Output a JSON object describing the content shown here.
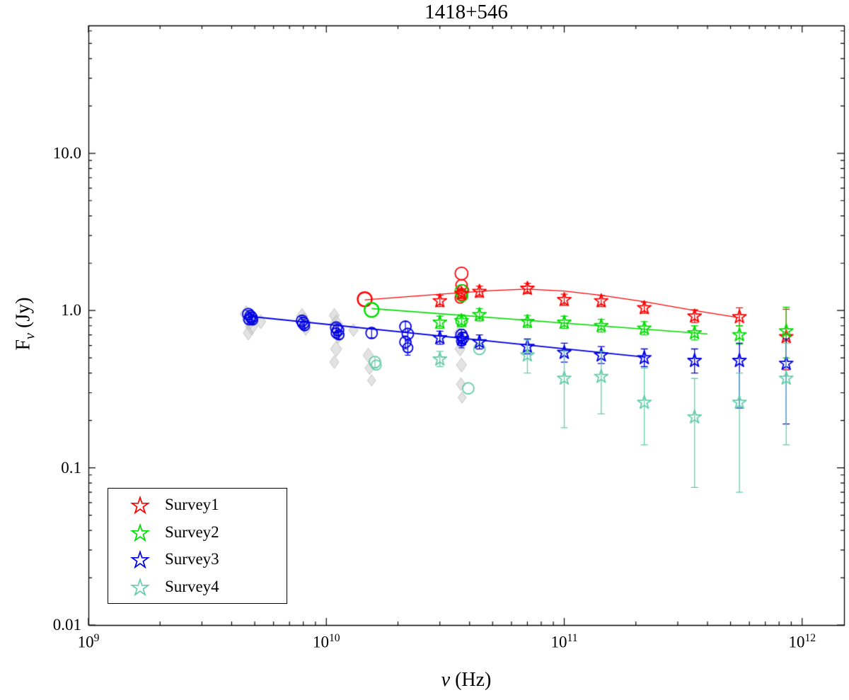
{
  "chart_data": {
    "type": "scatter",
    "title": "1418+546",
    "axes": {
      "xlabel_sym": "ν",
      "xlabel_rest": " (Hz)",
      "ylabel_base": "F",
      "ylabel_sub": "ν",
      "ylabel_rest": " (Jy)"
    },
    "xscale": "log",
    "yscale": "log",
    "xlim": [
      1000000000.0,
      1500000000000.0
    ],
    "ylim": [
      0.01,
      65
    ],
    "grid": false,
    "legend_position": "bottom-left",
    "x_ticks": [
      {
        "v": 1000000000.0,
        "base": "10",
        "exp": "9"
      },
      {
        "v": 10000000000.0,
        "base": "10",
        "exp": "10"
      },
      {
        "v": 100000000000.0,
        "base": "10",
        "exp": "11"
      },
      {
        "v": 1000000000000.0,
        "base": "10",
        "exp": "12"
      }
    ],
    "y_ticks": [
      {
        "v": 10,
        "label": "10.0"
      },
      {
        "v": 1,
        "label": "1.0"
      },
      {
        "v": 0.1,
        "label": "0.1"
      },
      {
        "v": 0.01,
        "label": "0.01"
      }
    ],
    "legend": {
      "items": [
        {
          "label": "Survey1",
          "color": "#ff0000"
        },
        {
          "label": "Survey2",
          "color": "#00dd00"
        },
        {
          "label": "Survey3",
          "color": "#0000e6"
        },
        {
          "label": "Survey4",
          "color": "#66cdaa"
        }
      ]
    },
    "series": [
      {
        "name": "Survey1",
        "color": "#ff0000",
        "marker": "star",
        "points": [
          {
            "x": 30000000000.0,
            "y": 1.15,
            "lo": 1.06,
            "hi": 1.25
          },
          {
            "x": 37000000000.0,
            "y": 1.28,
            "lo": 1.19,
            "hi": 1.38
          },
          {
            "x": 44000000000.0,
            "y": 1.32,
            "lo": 1.22,
            "hi": 1.43
          },
          {
            "x": 70000000000.0,
            "y": 1.38,
            "lo": 1.28,
            "hi": 1.49
          },
          {
            "x": 100000000000.0,
            "y": 1.17,
            "lo": 1.08,
            "hi": 1.27
          },
          {
            "x": 143000000000.0,
            "y": 1.15,
            "lo": 1.06,
            "hi": 1.25
          },
          {
            "x": 217000000000.0,
            "y": 1.04,
            "lo": 0.96,
            "hi": 1.13
          },
          {
            "x": 353000000000.0,
            "y": 0.92,
            "lo": 0.84,
            "hi": 1.01
          },
          {
            "x": 545000000000.0,
            "y": 0.91,
            "lo": 0.8,
            "hi": 1.04
          },
          {
            "x": 857000000000.0,
            "y": 0.68,
            "lo": 0.42,
            "hi": 1.02
          }
        ]
      },
      {
        "name": "Survey2",
        "color": "#00dd00",
        "marker": "star",
        "points": [
          {
            "x": 30000000000.0,
            "y": 0.84,
            "lo": 0.77,
            "hi": 0.92
          },
          {
            "x": 37000000000.0,
            "y": 0.86,
            "lo": 0.79,
            "hi": 0.94
          },
          {
            "x": 44000000000.0,
            "y": 0.94,
            "lo": 0.86,
            "hi": 1.03
          },
          {
            "x": 70000000000.0,
            "y": 0.85,
            "lo": 0.78,
            "hi": 0.93
          },
          {
            "x": 100000000000.0,
            "y": 0.84,
            "lo": 0.77,
            "hi": 0.92
          },
          {
            "x": 143000000000.0,
            "y": 0.8,
            "lo": 0.73,
            "hi": 0.88
          },
          {
            "x": 217000000000.0,
            "y": 0.77,
            "lo": 0.7,
            "hi": 0.85
          },
          {
            "x": 353000000000.0,
            "y": 0.72,
            "lo": 0.65,
            "hi": 0.8
          },
          {
            "x": 545000000000.0,
            "y": 0.7,
            "lo": 0.61,
            "hi": 0.8
          },
          {
            "x": 857000000000.0,
            "y": 0.74,
            "lo": 0.5,
            "hi": 1.05
          }
        ]
      },
      {
        "name": "Survey3",
        "color": "#0000e6",
        "marker": "star",
        "points": [
          {
            "x": 30000000000.0,
            "y": 0.67,
            "lo": 0.61,
            "hi": 0.74
          },
          {
            "x": 37000000000.0,
            "y": 0.66,
            "lo": 0.6,
            "hi": 0.72
          },
          {
            "x": 44000000000.0,
            "y": 0.63,
            "lo": 0.57,
            "hi": 0.7
          },
          {
            "x": 70000000000.0,
            "y": 0.59,
            "lo": 0.53,
            "hi": 0.66
          },
          {
            "x": 100000000000.0,
            "y": 0.54,
            "lo": 0.47,
            "hi": 0.62
          },
          {
            "x": 143000000000.0,
            "y": 0.52,
            "lo": 0.46,
            "hi": 0.59
          },
          {
            "x": 217000000000.0,
            "y": 0.5,
            "lo": 0.44,
            "hi": 0.57
          },
          {
            "x": 353000000000.0,
            "y": 0.48,
            "lo": 0.4,
            "hi": 0.57
          },
          {
            "x": 545000000000.0,
            "y": 0.48,
            "lo": 0.24,
            "hi": 0.62
          },
          {
            "x": 857000000000.0,
            "y": 0.46,
            "lo": 0.19,
            "hi": 0.66
          }
        ]
      },
      {
        "name": "Survey4",
        "color": "#66cdaa",
        "marker": "star",
        "points": [
          {
            "x": 30000000000.0,
            "y": 0.49,
            "lo": 0.44,
            "hi": 0.55
          },
          {
            "x": 70000000000.0,
            "y": 0.52,
            "lo": 0.4,
            "hi": 0.65
          },
          {
            "x": 100000000000.0,
            "y": 0.37,
            "lo": 0.18,
            "hi": 0.55
          },
          {
            "x": 143000000000.0,
            "y": 0.38,
            "lo": 0.22,
            "hi": 0.55
          },
          {
            "x": 217000000000.0,
            "y": 0.26,
            "lo": 0.14,
            "hi": 0.43
          },
          {
            "x": 353000000000.0,
            "y": 0.21,
            "lo": 0.075,
            "hi": 0.37
          },
          {
            "x": 545000000000.0,
            "y": 0.26,
            "lo": 0.07,
            "hi": 0.4
          },
          {
            "x": 857000000000.0,
            "y": 0.37,
            "lo": 0.14,
            "hi": 0.62
          }
        ]
      }
    ],
    "circles": [
      {
        "color": "#ff0000",
        "points": [
          {
            "x": 14500000000.0,
            "y": 1.18,
            "r": 10,
            "lw": 2.4
          },
          {
            "x": 37000000000.0,
            "y": 1.72,
            "r": 9
          },
          {
            "x": 37000000000.0,
            "y": 1.45,
            "r": 8
          },
          {
            "x": 37500000000.0,
            "y": 1.34,
            "r": 8
          },
          {
            "x": 37000000000.0,
            "y": 1.26,
            "r": 8
          },
          {
            "x": 36500000000.0,
            "y": 1.2,
            "r": 7
          }
        ]
      },
      {
        "color": "#00dd00",
        "points": [
          {
            "x": 15500000000.0,
            "y": 1.01,
            "r": 10,
            "lw": 2.4
          },
          {
            "x": 37000000000.0,
            "y": 1.33,
            "r": 9
          },
          {
            "x": 37200000000.0,
            "y": 1.24,
            "r": 8
          },
          {
            "x": 37000000000.0,
            "y": 0.86,
            "r": 8
          }
        ]
      },
      {
        "color": "#0000e6",
        "points": [
          {
            "x": 4700000000.0,
            "y": 0.95,
            "r": 8,
            "lo": 0.9,
            "hi": 1.0
          },
          {
            "x": 4800000000.0,
            "y": 0.92,
            "r": 8,
            "lo": 0.87,
            "hi": 0.97
          },
          {
            "x": 4850000000.0,
            "y": 0.9,
            "r": 8,
            "lo": 0.85,
            "hi": 0.95
          },
          {
            "x": 4750000000.0,
            "y": 0.88,
            "r": 8,
            "lo": 0.83,
            "hi": 0.93
          },
          {
            "x": 4900000000.0,
            "y": 0.87,
            "r": 7,
            "lo": 0.82,
            "hi": 0.92
          },
          {
            "x": 7900000000.0,
            "y": 0.86,
            "r": 8,
            "lo": 0.81,
            "hi": 0.91
          },
          {
            "x": 8000000000.0,
            "y": 0.83,
            "r": 8,
            "lo": 0.78,
            "hi": 0.88
          },
          {
            "x": 8100000000.0,
            "y": 0.8,
            "r": 7,
            "lo": 0.75,
            "hi": 0.85
          },
          {
            "x": 11000000000.0,
            "y": 0.78,
            "r": 8,
            "lo": 0.73,
            "hi": 0.83
          },
          {
            "x": 11200000000.0,
            "y": 0.75,
            "r": 8,
            "lo": 0.7,
            "hi": 0.8
          },
          {
            "x": 11000000000.0,
            "y": 0.72,
            "r": 7,
            "lo": 0.67,
            "hi": 0.77
          },
          {
            "x": 11300000000.0,
            "y": 0.7,
            "r": 7,
            "lo": 0.66,
            "hi": 0.74
          },
          {
            "x": 15500000000.0,
            "y": 0.72,
            "r": 8,
            "lo": 0.67,
            "hi": 0.77
          },
          {
            "x": 21500000000.0,
            "y": 0.79,
            "r": 8,
            "lo": 0.73,
            "hi": 0.85
          },
          {
            "x": 22000000000.0,
            "y": 0.71,
            "r": 8,
            "lo": 0.65,
            "hi": 0.77
          },
          {
            "x": 21500000000.0,
            "y": 0.63,
            "r": 8,
            "lo": 0.57,
            "hi": 0.69
          },
          {
            "x": 22000000000.0,
            "y": 0.58,
            "r": 7,
            "lo": 0.52,
            "hi": 0.64
          },
          {
            "x": 37000000000.0,
            "y": 0.7,
            "r": 8,
            "lo": 0.64,
            "hi": 0.76
          },
          {
            "x": 37500000000.0,
            "y": 0.67,
            "r": 8,
            "lo": 0.61,
            "hi": 0.73
          },
          {
            "x": 37000000000.0,
            "y": 0.64,
            "r": 7,
            "lo": 0.58,
            "hi": 0.7
          }
        ]
      },
      {
        "color": "#66cdaa",
        "points": [
          {
            "x": 16000000000.0,
            "y": 0.47,
            "r": 8,
            "lo": 0.43,
            "hi": 0.51
          },
          {
            "x": 16200000000.0,
            "y": 0.45,
            "r": 7
          },
          {
            "x": 39500000000.0,
            "y": 0.32,
            "r": 8
          },
          {
            "x": 44000000000.0,
            "y": 0.57,
            "r": 8
          }
        ]
      }
    ],
    "diamonds": {
      "fill": "rgba(200,200,200,0.5)",
      "stroke": "rgba(178,178,178,0.7)",
      "points": [
        [
          4600000000.0,
          0.95,
          12
        ],
        [
          4750000000.0,
          0.87,
          14
        ],
        [
          4850000000.0,
          0.79,
          12
        ],
        [
          4700000000.0,
          0.72,
          10
        ],
        [
          5300000000.0,
          0.85,
          10
        ],
        [
          7900000000.0,
          0.92,
          11
        ],
        [
          8050000000.0,
          0.84,
          14
        ],
        [
          8200000000.0,
          0.77,
          10
        ],
        [
          10800000000.0,
          0.93,
          10
        ],
        [
          11000000000.0,
          0.82,
          13
        ],
        [
          11200000000.0,
          0.7,
          12
        ],
        [
          11000000000.0,
          0.57,
          11
        ],
        [
          10800000000.0,
          0.47,
          9
        ],
        [
          13000000000.0,
          0.75,
          9
        ],
        [
          15000000000.0,
          0.52,
          10
        ],
        [
          15200000000.0,
          0.43,
          9
        ],
        [
          15500000000.0,
          0.36,
          8
        ],
        [
          36000000000.0,
          0.72,
          9
        ],
        [
          36500000000.0,
          0.57,
          10
        ],
        [
          37000000000.0,
          0.45,
          10
        ],
        [
          36800000000.0,
          0.34,
          9
        ],
        [
          37200000000.0,
          0.28,
          8
        ]
      ]
    },
    "fit_lines": [
      {
        "color": "#ff0000",
        "width": 1.2,
        "points": [
          [
            14500000000.0,
            1.17
          ],
          [
            30000000000.0,
            1.27
          ],
          [
            50000000000.0,
            1.34
          ],
          [
            70000000000.0,
            1.37
          ],
          [
            100000000000.0,
            1.33
          ],
          [
            143000000000.0,
            1.25
          ],
          [
            217000000000.0,
            1.14
          ],
          [
            353000000000.0,
            1.0
          ],
          [
            545000000000.0,
            0.9
          ]
        ]
      },
      {
        "color": "#00dd00",
        "width": 1.6,
        "points": [
          [
            15500000000.0,
            1.03
          ],
          [
            400000000000.0,
            0.71
          ]
        ]
      },
      {
        "color": "#0000e6",
        "width": 1.8,
        "points": [
          [
            4700000000.0,
            0.92
          ],
          [
            220000000000.0,
            0.505
          ]
        ]
      }
    ]
  }
}
